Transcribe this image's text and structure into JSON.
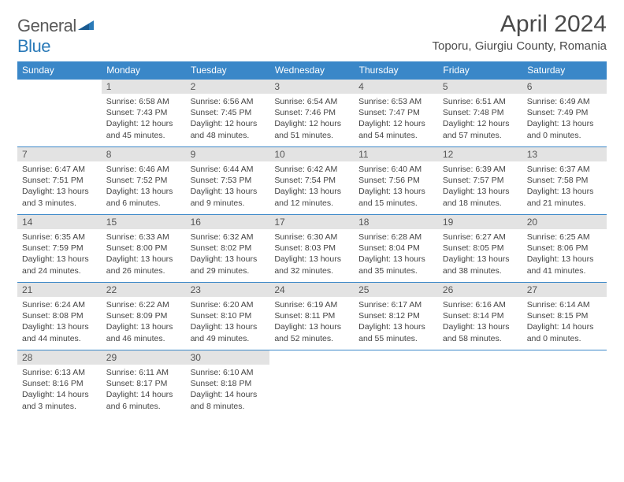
{
  "brand": {
    "part1": "General",
    "part2": "Blue"
  },
  "title": "April 2024",
  "location": "Toporu, Giurgiu County, Romania",
  "colors": {
    "header_bg": "#3a87c8",
    "header_text": "#ffffff",
    "daynum_bg": "#e3e3e3",
    "body_text": "#444444",
    "rule": "#3a87c8",
    "logo_blue": "#2a7ab8",
    "logo_gray": "#5a5a5a"
  },
  "day_names": [
    "Sunday",
    "Monday",
    "Tuesday",
    "Wednesday",
    "Thursday",
    "Friday",
    "Saturday"
  ],
  "weeks": [
    [
      null,
      {
        "n": "1",
        "sr": "6:58 AM",
        "ss": "7:43 PM",
        "dl": "12 hours and 45 minutes."
      },
      {
        "n": "2",
        "sr": "6:56 AM",
        "ss": "7:45 PM",
        "dl": "12 hours and 48 minutes."
      },
      {
        "n": "3",
        "sr": "6:54 AM",
        "ss": "7:46 PM",
        "dl": "12 hours and 51 minutes."
      },
      {
        "n": "4",
        "sr": "6:53 AM",
        "ss": "7:47 PM",
        "dl": "12 hours and 54 minutes."
      },
      {
        "n": "5",
        "sr": "6:51 AM",
        "ss": "7:48 PM",
        "dl": "12 hours and 57 minutes."
      },
      {
        "n": "6",
        "sr": "6:49 AM",
        "ss": "7:49 PM",
        "dl": "13 hours and 0 minutes."
      }
    ],
    [
      {
        "n": "7",
        "sr": "6:47 AM",
        "ss": "7:51 PM",
        "dl": "13 hours and 3 minutes."
      },
      {
        "n": "8",
        "sr": "6:46 AM",
        "ss": "7:52 PM",
        "dl": "13 hours and 6 minutes."
      },
      {
        "n": "9",
        "sr": "6:44 AM",
        "ss": "7:53 PM",
        "dl": "13 hours and 9 minutes."
      },
      {
        "n": "10",
        "sr": "6:42 AM",
        "ss": "7:54 PM",
        "dl": "13 hours and 12 minutes."
      },
      {
        "n": "11",
        "sr": "6:40 AM",
        "ss": "7:56 PM",
        "dl": "13 hours and 15 minutes."
      },
      {
        "n": "12",
        "sr": "6:39 AM",
        "ss": "7:57 PM",
        "dl": "13 hours and 18 minutes."
      },
      {
        "n": "13",
        "sr": "6:37 AM",
        "ss": "7:58 PM",
        "dl": "13 hours and 21 minutes."
      }
    ],
    [
      {
        "n": "14",
        "sr": "6:35 AM",
        "ss": "7:59 PM",
        "dl": "13 hours and 24 minutes."
      },
      {
        "n": "15",
        "sr": "6:33 AM",
        "ss": "8:00 PM",
        "dl": "13 hours and 26 minutes."
      },
      {
        "n": "16",
        "sr": "6:32 AM",
        "ss": "8:02 PM",
        "dl": "13 hours and 29 minutes."
      },
      {
        "n": "17",
        "sr": "6:30 AM",
        "ss": "8:03 PM",
        "dl": "13 hours and 32 minutes."
      },
      {
        "n": "18",
        "sr": "6:28 AM",
        "ss": "8:04 PM",
        "dl": "13 hours and 35 minutes."
      },
      {
        "n": "19",
        "sr": "6:27 AM",
        "ss": "8:05 PM",
        "dl": "13 hours and 38 minutes."
      },
      {
        "n": "20",
        "sr": "6:25 AM",
        "ss": "8:06 PM",
        "dl": "13 hours and 41 minutes."
      }
    ],
    [
      {
        "n": "21",
        "sr": "6:24 AM",
        "ss": "8:08 PM",
        "dl": "13 hours and 44 minutes."
      },
      {
        "n": "22",
        "sr": "6:22 AM",
        "ss": "8:09 PM",
        "dl": "13 hours and 46 minutes."
      },
      {
        "n": "23",
        "sr": "6:20 AM",
        "ss": "8:10 PM",
        "dl": "13 hours and 49 minutes."
      },
      {
        "n": "24",
        "sr": "6:19 AM",
        "ss": "8:11 PM",
        "dl": "13 hours and 52 minutes."
      },
      {
        "n": "25",
        "sr": "6:17 AM",
        "ss": "8:12 PM",
        "dl": "13 hours and 55 minutes."
      },
      {
        "n": "26",
        "sr": "6:16 AM",
        "ss": "8:14 PM",
        "dl": "13 hours and 58 minutes."
      },
      {
        "n": "27",
        "sr": "6:14 AM",
        "ss": "8:15 PM",
        "dl": "14 hours and 0 minutes."
      }
    ],
    [
      {
        "n": "28",
        "sr": "6:13 AM",
        "ss": "8:16 PM",
        "dl": "14 hours and 3 minutes."
      },
      {
        "n": "29",
        "sr": "6:11 AM",
        "ss": "8:17 PM",
        "dl": "14 hours and 6 minutes."
      },
      {
        "n": "30",
        "sr": "6:10 AM",
        "ss": "8:18 PM",
        "dl": "14 hours and 8 minutes."
      },
      null,
      null,
      null,
      null
    ]
  ],
  "labels": {
    "sunrise": "Sunrise:",
    "sunset": "Sunset:",
    "daylight": "Daylight:"
  }
}
